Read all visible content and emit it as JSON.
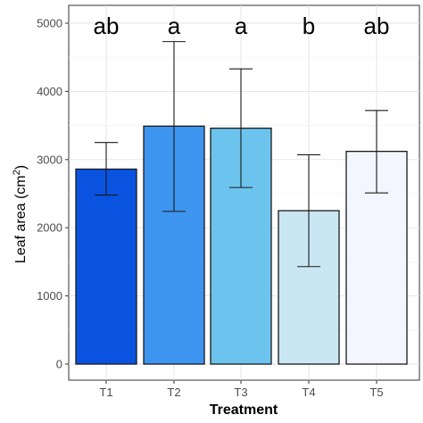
{
  "chart_data": {
    "type": "bar",
    "xlabel": "Treatment",
    "ylabel": "Leaf area (cm",
    "ylabel_superscript": "2",
    "ylabel_suffix": ")",
    "categories": [
      "T1",
      "T2",
      "T3",
      "T4",
      "T5"
    ],
    "values": [
      2860,
      3490,
      3460,
      2250,
      3120
    ],
    "error_low": [
      2480,
      2240,
      2590,
      1430,
      2510
    ],
    "error_high": [
      3250,
      4730,
      4330,
      3070,
      3720
    ],
    "significance_letters": [
      "ab",
      "a",
      "a",
      "b",
      "ab"
    ],
    "bar_colors": [
      "#0a52e0",
      "#3e95ef",
      "#6cc4ee",
      "#c9e7f2",
      "#f3f6ff"
    ],
    "ylim": [
      0,
      5000
    ],
    "yticks": [
      0,
      1000,
      2000,
      3000,
      4000,
      5000
    ],
    "grid": true,
    "legend": "none"
  }
}
